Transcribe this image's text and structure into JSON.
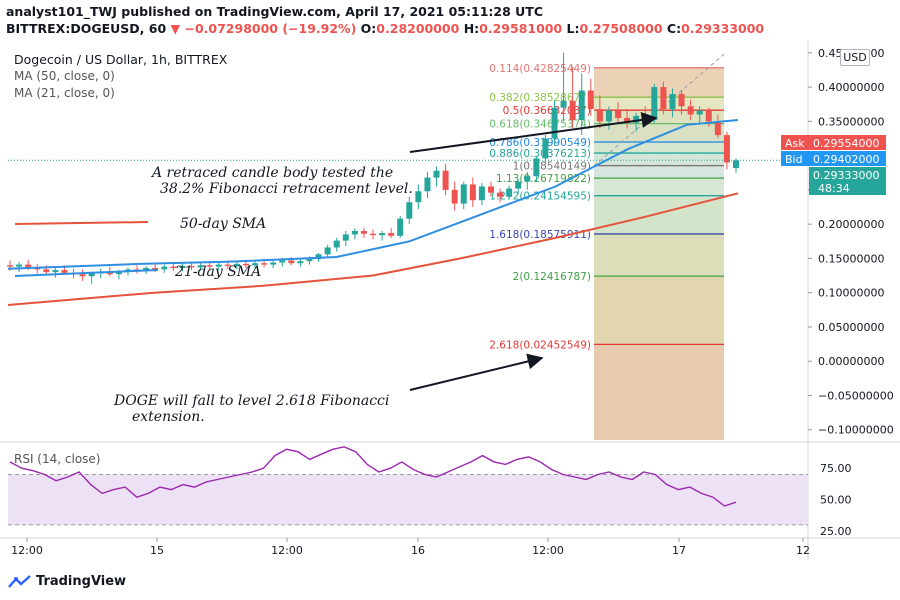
{
  "header": {
    "published": "analyst101_TWJ published on TradingView.com, April 17, 2021 05:11:28 UTC",
    "symbol_interval": "BITTREX:DOGEUSD, 60",
    "change": "−0.07298000 (−19.92%)",
    "ohlc": {
      "o_label": "O:",
      "o": "0.28200000",
      "h_label": "H:",
      "h": "0.29581000",
      "l_label": "L:",
      "l": "0.27508000",
      "c_label": "C:",
      "c": "0.29333000"
    }
  },
  "legend": {
    "title": "Dogecoin / US Dollar, 1h, BITTREX",
    "ma50": "MA (50, close, 0)",
    "ma21": "MA (21, close, 0)"
  },
  "rsi_legend": "RSI (14, close)",
  "currency": "USD",
  "brand": "TradingView",
  "colors": {
    "up": "#26a69a",
    "down": "#ef5350",
    "ma50": "#e5533c",
    "ma21": "#2e8ee0",
    "rsi_line": "#9c27b0",
    "rsi_band": "#ede1f5",
    "ask": "#ef5350",
    "bid": "#2196f3"
  },
  "chart_data": {
    "type": "candlestick",
    "y_axis": {
      "ticks": [
        "0.45000000",
        "0.40000000",
        "0.35000000",
        "0.30000000",
        "0.25000000",
        "0.20000000",
        "0.15000000",
        "0.10000000",
        "0.05000000",
        "0.00000000",
        "−0.05000000",
        "−0.10000000"
      ],
      "ylim": [
        -0.115,
        0.46
      ]
    },
    "x_axis": {
      "ticks": [
        "12:00",
        "15",
        "12:00",
        "16",
        "12:00",
        "17",
        "12"
      ]
    },
    "price_labels": {
      "ask_label": "Ask",
      "ask": "0.29554000",
      "bid_label": "Bid",
      "bid": "0.29402000",
      "last": "0.29333000",
      "countdown": "48:34"
    },
    "candles": [
      {
        "o": 0.14,
        "h": 0.147,
        "l": 0.132,
        "c": 0.138
      },
      {
        "o": 0.138,
        "h": 0.145,
        "l": 0.13,
        "c": 0.141
      },
      {
        "o": 0.141,
        "h": 0.148,
        "l": 0.133,
        "c": 0.136
      },
      {
        "o": 0.136,
        "h": 0.142,
        "l": 0.128,
        "c": 0.134
      },
      {
        "o": 0.134,
        "h": 0.14,
        "l": 0.126,
        "c": 0.13
      },
      {
        "o": 0.13,
        "h": 0.137,
        "l": 0.122,
        "c": 0.133
      },
      {
        "o": 0.133,
        "h": 0.14,
        "l": 0.127,
        "c": 0.129
      },
      {
        "o": 0.129,
        "h": 0.135,
        "l": 0.121,
        "c": 0.127
      },
      {
        "o": 0.127,
        "h": 0.134,
        "l": 0.117,
        "c": 0.124
      },
      {
        "o": 0.124,
        "h": 0.131,
        "l": 0.113,
        "c": 0.128
      },
      {
        "o": 0.128,
        "h": 0.135,
        "l": 0.121,
        "c": 0.131
      },
      {
        "o": 0.131,
        "h": 0.138,
        "l": 0.124,
        "c": 0.127
      },
      {
        "o": 0.127,
        "h": 0.133,
        "l": 0.12,
        "c": 0.13
      },
      {
        "o": 0.13,
        "h": 0.137,
        "l": 0.125,
        "c": 0.134
      },
      {
        "o": 0.134,
        "h": 0.14,
        "l": 0.128,
        "c": 0.132
      },
      {
        "o": 0.132,
        "h": 0.139,
        "l": 0.127,
        "c": 0.136
      },
      {
        "o": 0.136,
        "h": 0.142,
        "l": 0.13,
        "c": 0.134
      },
      {
        "o": 0.134,
        "h": 0.141,
        "l": 0.129,
        "c": 0.138
      },
      {
        "o": 0.138,
        "h": 0.144,
        "l": 0.132,
        "c": 0.136
      },
      {
        "o": 0.136,
        "h": 0.143,
        "l": 0.131,
        "c": 0.139
      },
      {
        "o": 0.139,
        "h": 0.145,
        "l": 0.133,
        "c": 0.137
      },
      {
        "o": 0.137,
        "h": 0.144,
        "l": 0.132,
        "c": 0.14
      },
      {
        "o": 0.14,
        "h": 0.146,
        "l": 0.134,
        "c": 0.138
      },
      {
        "o": 0.138,
        "h": 0.145,
        "l": 0.133,
        "c": 0.141
      },
      {
        "o": 0.141,
        "h": 0.147,
        "l": 0.135,
        "c": 0.139
      },
      {
        "o": 0.139,
        "h": 0.146,
        "l": 0.134,
        "c": 0.142
      },
      {
        "o": 0.142,
        "h": 0.148,
        "l": 0.136,
        "c": 0.14
      },
      {
        "o": 0.14,
        "h": 0.147,
        "l": 0.135,
        "c": 0.143
      },
      {
        "o": 0.143,
        "h": 0.149,
        "l": 0.137,
        "c": 0.141
      },
      {
        "o": 0.141,
        "h": 0.148,
        "l": 0.136,
        "c": 0.144
      },
      {
        "o": 0.144,
        "h": 0.151,
        "l": 0.138,
        "c": 0.147
      },
      {
        "o": 0.147,
        "h": 0.152,
        "l": 0.14,
        "c": 0.143
      },
      {
        "o": 0.143,
        "h": 0.15,
        "l": 0.138,
        "c": 0.146
      },
      {
        "o": 0.146,
        "h": 0.153,
        "l": 0.141,
        "c": 0.149
      },
      {
        "o": 0.149,
        "h": 0.158,
        "l": 0.145,
        "c": 0.156
      },
      {
        "o": 0.156,
        "h": 0.17,
        "l": 0.152,
        "c": 0.166
      },
      {
        "o": 0.166,
        "h": 0.18,
        "l": 0.16,
        "c": 0.176
      },
      {
        "o": 0.176,
        "h": 0.19,
        "l": 0.168,
        "c": 0.185
      },
      {
        "o": 0.185,
        "h": 0.194,
        "l": 0.178,
        "c": 0.19
      },
      {
        "o": 0.19,
        "h": 0.195,
        "l": 0.18,
        "c": 0.186
      },
      {
        "o": 0.186,
        "h": 0.192,
        "l": 0.178,
        "c": 0.184
      },
      {
        "o": 0.184,
        "h": 0.19,
        "l": 0.176,
        "c": 0.187
      },
      {
        "o": 0.187,
        "h": 0.194,
        "l": 0.18,
        "c": 0.183
      },
      {
        "o": 0.183,
        "h": 0.212,
        "l": 0.18,
        "c": 0.208
      },
      {
        "o": 0.208,
        "h": 0.24,
        "l": 0.2,
        "c": 0.232
      },
      {
        "o": 0.232,
        "h": 0.258,
        "l": 0.222,
        "c": 0.248
      },
      {
        "o": 0.248,
        "h": 0.276,
        "l": 0.238,
        "c": 0.268
      },
      {
        "o": 0.268,
        "h": 0.284,
        "l": 0.255,
        "c": 0.278
      },
      {
        "o": 0.278,
        "h": 0.288,
        "l": 0.242,
        "c": 0.25
      },
      {
        "o": 0.25,
        "h": 0.262,
        "l": 0.22,
        "c": 0.23
      },
      {
        "o": 0.23,
        "h": 0.262,
        "l": 0.222,
        "c": 0.258
      },
      {
        "o": 0.258,
        "h": 0.268,
        "l": 0.225,
        "c": 0.235
      },
      {
        "o": 0.235,
        "h": 0.26,
        "l": 0.228,
        "c": 0.255
      },
      {
        "o": 0.255,
        "h": 0.262,
        "l": 0.24,
        "c": 0.246
      },
      {
        "o": 0.246,
        "h": 0.252,
        "l": 0.232,
        "c": 0.24
      },
      {
        "o": 0.24,
        "h": 0.256,
        "l": 0.236,
        "c": 0.252
      },
      {
        "o": 0.252,
        "h": 0.266,
        "l": 0.244,
        "c": 0.262
      },
      {
        "o": 0.262,
        "h": 0.276,
        "l": 0.25,
        "c": 0.27
      },
      {
        "o": 0.27,
        "h": 0.3,
        "l": 0.262,
        "c": 0.296
      },
      {
        "o": 0.296,
        "h": 0.33,
        "l": 0.288,
        "c": 0.325
      },
      {
        "o": 0.325,
        "h": 0.38,
        "l": 0.315,
        "c": 0.37
      },
      {
        "o": 0.37,
        "h": 0.45,
        "l": 0.35,
        "c": 0.38
      },
      {
        "o": 0.38,
        "h": 0.43,
        "l": 0.34,
        "c": 0.352
      },
      {
        "o": 0.352,
        "h": 0.42,
        "l": 0.33,
        "c": 0.395
      },
      {
        "o": 0.395,
        "h": 0.412,
        "l": 0.358,
        "c": 0.368
      },
      {
        "o": 0.368,
        "h": 0.388,
        "l": 0.34,
        "c": 0.35
      },
      {
        "o": 0.35,
        "h": 0.372,
        "l": 0.338,
        "c": 0.366
      },
      {
        "o": 0.366,
        "h": 0.378,
        "l": 0.348,
        "c": 0.355
      },
      {
        "o": 0.355,
        "h": 0.368,
        "l": 0.34,
        "c": 0.348
      },
      {
        "o": 0.348,
        "h": 0.362,
        "l": 0.335,
        "c": 0.358
      },
      {
        "o": 0.358,
        "h": 0.372,
        "l": 0.345,
        "c": 0.352
      },
      {
        "o": 0.352,
        "h": 0.405,
        "l": 0.348,
        "c": 0.4
      },
      {
        "o": 0.4,
        "h": 0.408,
        "l": 0.36,
        "c": 0.368
      },
      {
        "o": 0.368,
        "h": 0.398,
        "l": 0.356,
        "c": 0.39
      },
      {
        "o": 0.39,
        "h": 0.396,
        "l": 0.36,
        "c": 0.372
      },
      {
        "o": 0.372,
        "h": 0.382,
        "l": 0.352,
        "c": 0.36
      },
      {
        "o": 0.36,
        "h": 0.372,
        "l": 0.348,
        "c": 0.366
      },
      {
        "o": 0.366,
        "h": 0.37,
        "l": 0.342,
        "c": 0.35
      },
      {
        "o": 0.35,
        "h": 0.36,
        "l": 0.326,
        "c": 0.33
      },
      {
        "o": 0.33,
        "h": 0.335,
        "l": 0.28,
        "c": 0.29
      },
      {
        "o": 0.282,
        "h": 0.296,
        "l": 0.275,
        "c": 0.293
      }
    ],
    "ma21": [
      [
        0.135,
        0
      ],
      [
        0.142,
        0.18
      ],
      [
        0.145,
        0.3
      ],
      [
        0.152,
        0.45
      ],
      [
        0.175,
        0.55
      ],
      [
        0.215,
        0.65
      ],
      [
        0.255,
        0.75
      ],
      [
        0.31,
        0.85
      ],
      [
        0.345,
        0.93
      ],
      [
        0.352,
        1.0
      ]
    ],
    "ma50": [
      [
        0.082,
        0
      ],
      [
        0.1,
        0.2
      ],
      [
        0.11,
        0.35
      ],
      [
        0.125,
        0.5
      ],
      [
        0.15,
        0.62
      ],
      [
        0.18,
        0.75
      ],
      [
        0.21,
        0.87
      ],
      [
        0.245,
        1.0
      ]
    ],
    "fib_levels": [
      {
        "label": "0.114(0.42825449)",
        "value": 0.42825449,
        "color": "#e57373"
      },
      {
        "label": "0.382(0.38528677)",
        "value": 0.38528677,
        "color": "#8bc34a"
      },
      {
        "label": "0.5(0.36632037)",
        "value": 0.36632037,
        "color": "#e53935"
      },
      {
        "label": "0.618(0.34675374)",
        "value": 0.34675374,
        "color": "#66bb6a"
      },
      {
        "label": "0.786(0.31990549)",
        "value": 0.31990549,
        "color": "#1e88e5"
      },
      {
        "label": "0.886(0.30376213)",
        "value": 0.30376213,
        "color": "#26a69a"
      },
      {
        "label": "1(0.28540149)",
        "value": 0.28540149,
        "color": "#757575"
      },
      {
        "label": "1.13(0.26719822)",
        "value": 0.26719822,
        "color": "#43a047"
      },
      {
        "label": "1.272(0.24154595)",
        "value": 0.24154595,
        "color": "#26a69a"
      },
      {
        "label": "1.618(0.18575911)",
        "value": 0.18575911,
        "color": "#3949ab"
      },
      {
        "label": "2(0.12416787)",
        "value": 0.12416787,
        "color": "#43a047"
      },
      {
        "label": "2.618(0.02452549)",
        "value": 0.02452549,
        "color": "#e53935"
      }
    ],
    "annotations": {
      "retrace_text_1": "A retraced candle body tested the",
      "retrace_text_2": "38.2% Fibonacci  retracement level.",
      "sma50_label": "50-day SMA",
      "sma21_label": "21-day SMA",
      "fall_text_1": "DOGE will fall to level 2.618 Fibonacci",
      "fall_text_2": "extension."
    },
    "rsi": {
      "ticks": [
        "75.00",
        "50.00",
        "25.00"
      ],
      "band": [
        30,
        70
      ],
      "ylim": [
        22,
        95
      ],
      "values": [
        80,
        75,
        73,
        70,
        65,
        68,
        72,
        62,
        55,
        58,
        60,
        52,
        55,
        60,
        58,
        62,
        60,
        64,
        66,
        68,
        70,
        72,
        75,
        85,
        90,
        88,
        82,
        86,
        90,
        92,
        88,
        78,
        72,
        75,
        80,
        74,
        70,
        68,
        72,
        76,
        80,
        85,
        80,
        78,
        82,
        84,
        80,
        74,
        70,
        68,
        66,
        70,
        72,
        68,
        66,
        72,
        70,
        62,
        58,
        60,
        55,
        52,
        45,
        48
      ]
    }
  }
}
